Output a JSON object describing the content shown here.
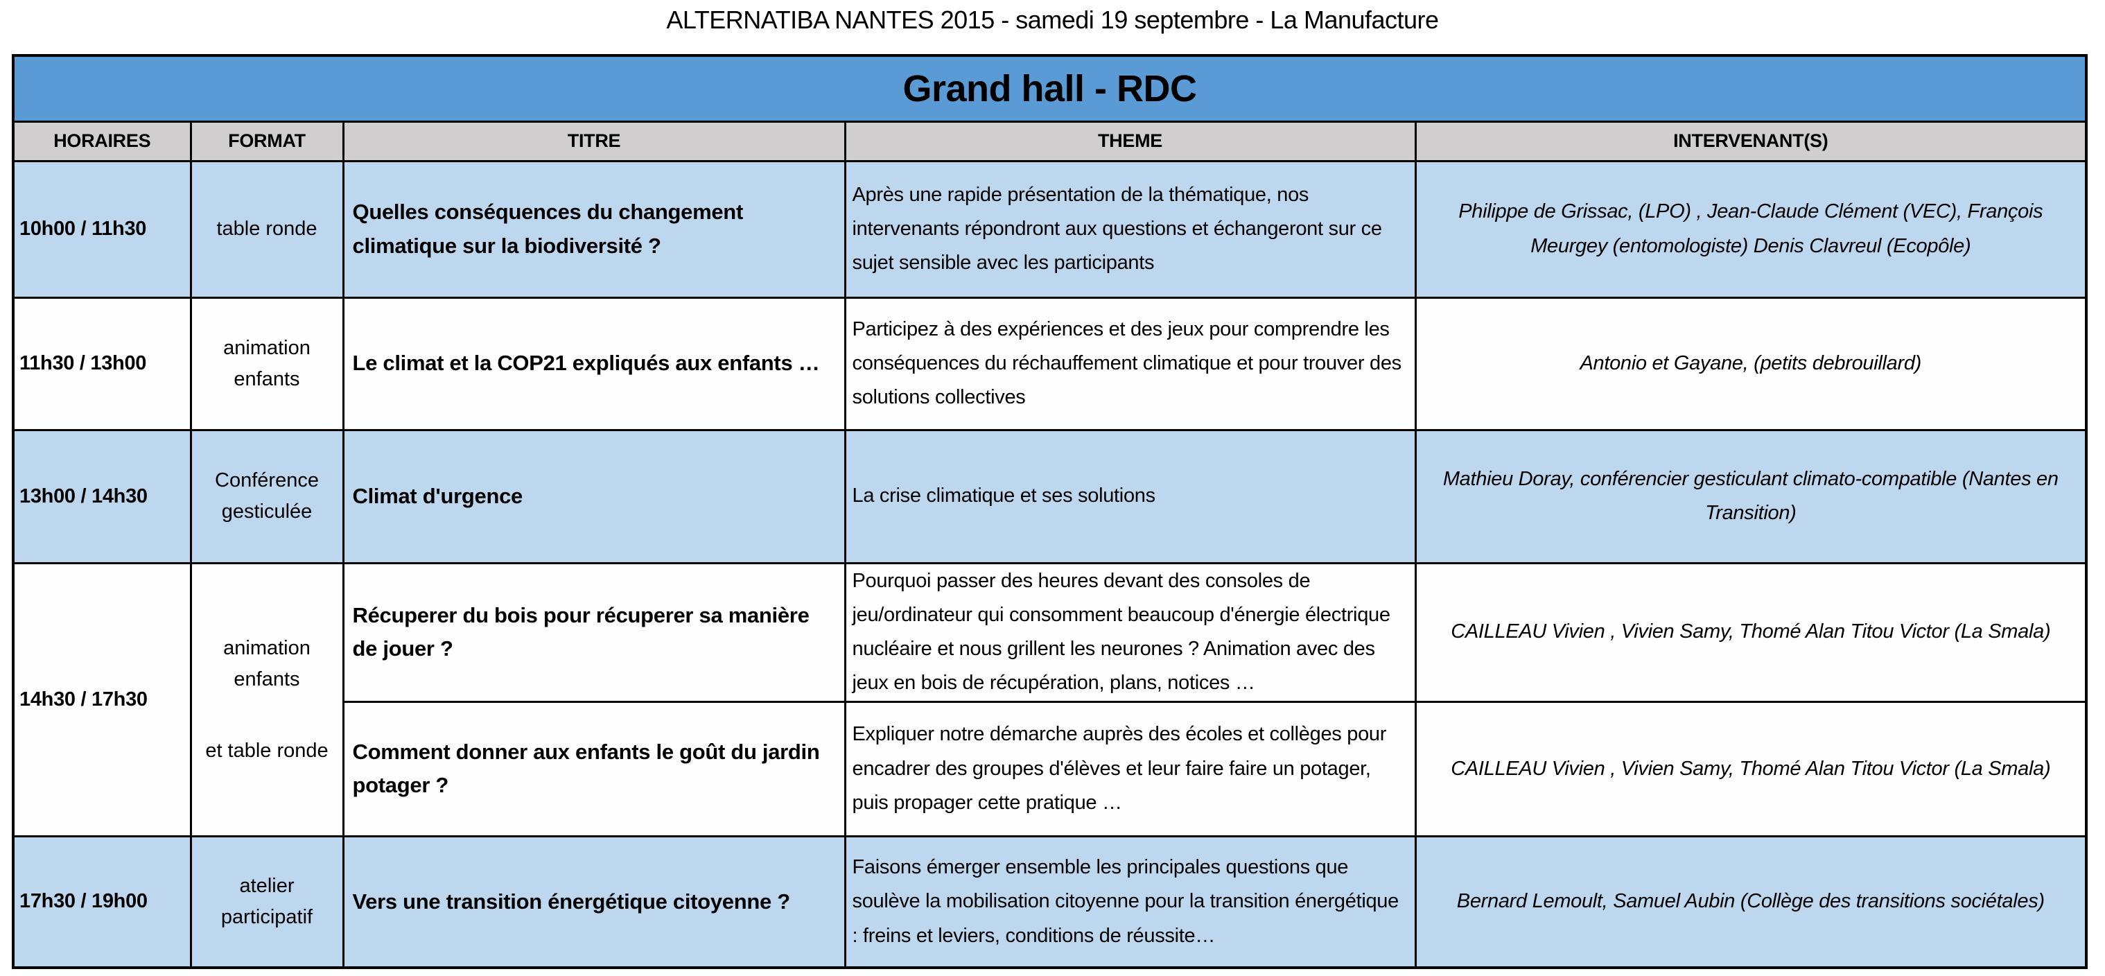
{
  "page_title": "ALTERNATIBA NANTES 2015 - samedi 19 septembre - La Manufacture",
  "colors": {
    "banner_blue": "#5b9bd5",
    "row_light_blue": "#bdd7ee",
    "header_grey": "#d0cece",
    "border_black": "#000000",
    "row_white": "#fefefe"
  },
  "table": {
    "banner_title": "Grand hall - RDC",
    "columns": [
      "HORAIRES",
      "FORMAT",
      "TITRE",
      "THEME",
      "INTERVENANT(S)"
    ],
    "rows": [
      {
        "horaires": "10h00 / 11h30",
        "format": "table ronde",
        "titre": "Quelles conséquences du changement climatique sur la biodiversité ?",
        "theme": "Après une rapide présentation de la thématique, nos intervenants répondront aux questions et échangeront sur ce sujet sensible avec les participants",
        "intervenants": "Philippe de Grissac, (LPO) ,  Jean-Claude Clément (VEC),  François Meurgey (entomologiste) Denis Clavreul (Ecopôle)"
      },
      {
        "horaires": "11h30 / 13h00",
        "format": "animation enfants",
        "titre": "Le climat et la COP21 expliqués aux enfants …",
        "theme": "Participez à des expériences et des jeux pour comprendre les conséquences du réchauffement climatique et pour trouver des solutions collectives",
        "intervenants": "Antonio et Gayane, (petits debrouillard)"
      },
      {
        "horaires": "13h00 / 14h30",
        "format": "Conférence gesticulée",
        "titre": "Climat d'urgence",
        "theme": "La crise climatique et ses solutions",
        "intervenants": "Mathieu Doray, conférencier gesticulant climato-compatible (Nantes en Transition)"
      },
      {
        "horaires": "14h30 / 17h30",
        "format_line1": "animation enfants",
        "format_line2": "et table ronde",
        "sub_rows": [
          {
            "titre": "Récuperer du bois pour récuperer sa manière de jouer ?",
            "theme": "Pourquoi passer des heures devant des consoles de jeu/ordinateur qui consomment beaucoup d'énergie électrique nucléaire et nous grillent les neurones ? Animation avec des jeux en bois de récupération, plans, notices …",
            "intervenants": "CAILLEAU Vivien , Vivien Samy, Thomé Alan Titou Victor (La Smala)"
          },
          {
            "titre": "Comment donner aux enfants le goût du jardin potager ?",
            "theme": "Expliquer notre démarche auprès des écoles et collèges pour encadrer des groupes d'élèves et leur faire faire un potager, puis propager cette pratique …",
            "intervenants": "CAILLEAU Vivien , Vivien Samy, Thomé Alan Titou Victor (La Smala)"
          }
        ]
      },
      {
        "horaires": "17h30 / 19h00",
        "format": "atelier participatif",
        "titre": "Vers une transition énergétique citoyenne ?",
        "theme": "Faisons émerger ensemble les principales questions que soulève la mobilisation citoyenne pour la transition énergétique : freins et leviers, conditions de réussite…",
        "intervenants": "Bernard Lemoult, Samuel Aubin  (Collège des transitions sociétales)"
      }
    ]
  }
}
